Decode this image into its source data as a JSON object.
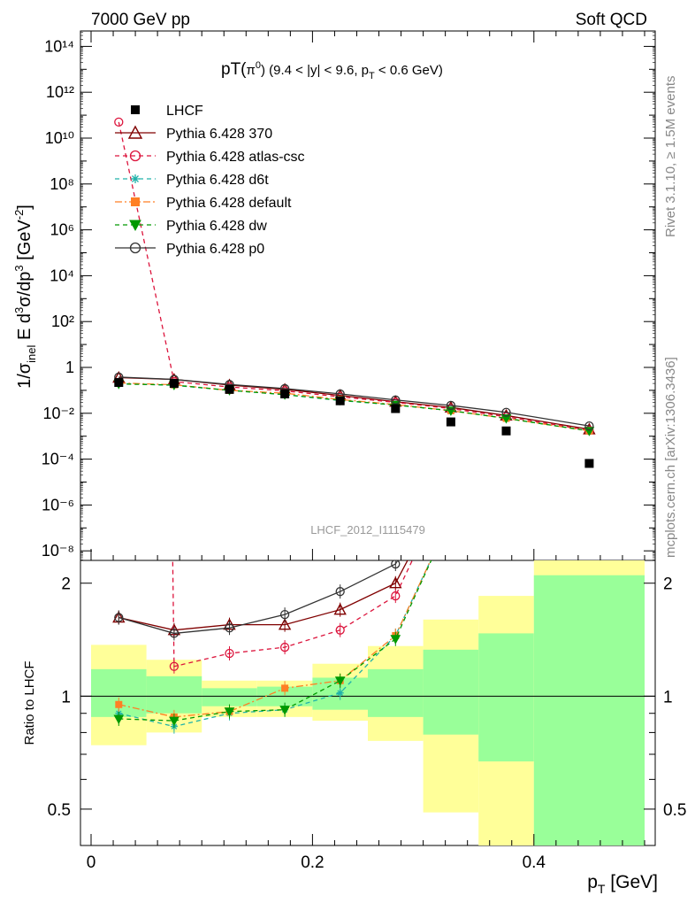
{
  "header": {
    "left": "7000 GeV pp",
    "right": "Soft QCD"
  },
  "side": {
    "top": "Rivet 3.1.10, ≥ 1.5M events",
    "bottom": "mcplots.cern.ch [arXiv:1306.3436]"
  },
  "chart_data": {
    "type": "scatter",
    "title": "pT(π⁰) (9.4 < |y| < 9.6, p_T < 0.6 GeV)",
    "watermark": "LHCF_2012_I1115479",
    "xlabel": "p_T [GeV]",
    "ylabel_main": "1/σ_inel E d³σ/dp³ [GeV⁻²]",
    "ylabel_ratio": "Ratio to LHCF",
    "xlim": [
      0,
      0.5
    ],
    "ylim_main": [
      1e-09,
      1000000000000000.0
    ],
    "ylim_ratio": [
      0.4,
      2.3
    ],
    "log_y_main": true,
    "log_y_ratio": true,
    "x_ticks": [
      "0",
      "0.2",
      "0.4"
    ],
    "y_ticks_main": [
      "10⁻⁸",
      "10⁻⁶",
      "10⁻⁴",
      "10⁻²",
      "1",
      "10²",
      "10⁴",
      "10⁶",
      "10⁸",
      "10¹⁰",
      "10¹²",
      "10¹⁴"
    ],
    "y_ticks_ratio": [
      "0.5",
      "1",
      "2"
    ],
    "x": [
      0.025,
      0.075,
      0.125,
      0.175,
      0.225,
      0.275,
      0.325,
      0.375,
      0.45
    ],
    "bin_edges": [
      0,
      0.05,
      0.1,
      0.15,
      0.2,
      0.25,
      0.3,
      0.35,
      0.4,
      0.5
    ],
    "data": {
      "name": "LHCF",
      "values": [
        0.22,
        0.2,
        0.11,
        0.07,
        0.035,
        0.016,
        0.0042,
        0.0017,
        6.5e-05
      ],
      "color": "#000000"
    },
    "series": [
      {
        "name": "Pythia 6.428 370",
        "style": "solid",
        "marker": "triangle",
        "color": "#800000",
        "values": [
          0.36,
          0.3,
          0.17,
          0.11,
          0.06,
          0.032,
          0.018,
          0.008,
          0.002
        ],
        "ratio": [
          1.62,
          1.5,
          1.55,
          1.55,
          1.7,
          2.0,
          3.8,
          4.5,
          25
        ]
      },
      {
        "name": "Pythia 6.428 atlas-csc",
        "style": "dashed",
        "marker": "circle",
        "color": "#dc143c",
        "values": [
          50000000000.0,
          0.24,
          0.14,
          0.095,
          0.052,
          0.03,
          0.016,
          0.007,
          0.0018
        ],
        "ratio": [
          250000000000.0,
          1.2,
          1.3,
          1.35,
          1.5,
          1.85,
          3.8,
          4.2,
          25
        ]
      },
      {
        "name": "Pythia 6.428 d6t",
        "style": "dashed",
        "marker": "star",
        "color": "#20b2aa",
        "values": [
          0.2,
          0.165,
          0.1,
          0.065,
          0.036,
          0.023,
          0.013,
          0.006,
          0.0017
        ],
        "ratio": [
          0.9,
          0.83,
          0.9,
          0.92,
          1.02,
          1.45,
          3.0,
          3.5,
          25
        ]
      },
      {
        "name": "Pythia 6.428 default",
        "style": "dashdot",
        "marker": "square",
        "color": "#ff7f24",
        "values": [
          0.21,
          0.175,
          0.1,
          0.075,
          0.04,
          0.024,
          0.013,
          0.006,
          0.0017
        ],
        "ratio": [
          0.95,
          0.88,
          0.91,
          1.05,
          1.1,
          1.45,
          3.0,
          3.5,
          25
        ]
      },
      {
        "name": "Pythia 6.428 dw",
        "style": "dashed",
        "marker": "triangle-down",
        "color": "#009900",
        "values": [
          0.19,
          0.17,
          0.1,
          0.065,
          0.037,
          0.023,
          0.013,
          0.006,
          0.0017
        ],
        "ratio": [
          0.87,
          0.86,
          0.91,
          0.92,
          1.1,
          1.42,
          3.0,
          3.5,
          25
        ]
      },
      {
        "name": "Pythia 6.428 p0",
        "style": "solid",
        "marker": "circle",
        "color": "#333333",
        "values": [
          0.38,
          0.3,
          0.18,
          0.12,
          0.07,
          0.038,
          0.022,
          0.011,
          0.0028
        ],
        "ratio": [
          1.62,
          1.47,
          1.52,
          1.65,
          1.9,
          2.25,
          4.0,
          5.5,
          40
        ]
      }
    ],
    "ratio_bands": {
      "green_low": [
        0.88,
        0.9,
        0.94,
        0.94,
        0.92,
        0.88,
        0.79,
        0.67,
        0.2
      ],
      "green_high": [
        1.18,
        1.13,
        1.05,
        1.06,
        1.12,
        1.18,
        1.33,
        1.47,
        2.1
      ],
      "yellow_low": [
        0.74,
        0.8,
        0.88,
        0.88,
        0.86,
        0.76,
        0.49,
        0.35,
        0.2
      ],
      "yellow_high": [
        1.37,
        1.25,
        1.1,
        1.1,
        1.22,
        1.36,
        1.6,
        1.85,
        3.0
      ]
    },
    "legend_position": "top-left"
  }
}
